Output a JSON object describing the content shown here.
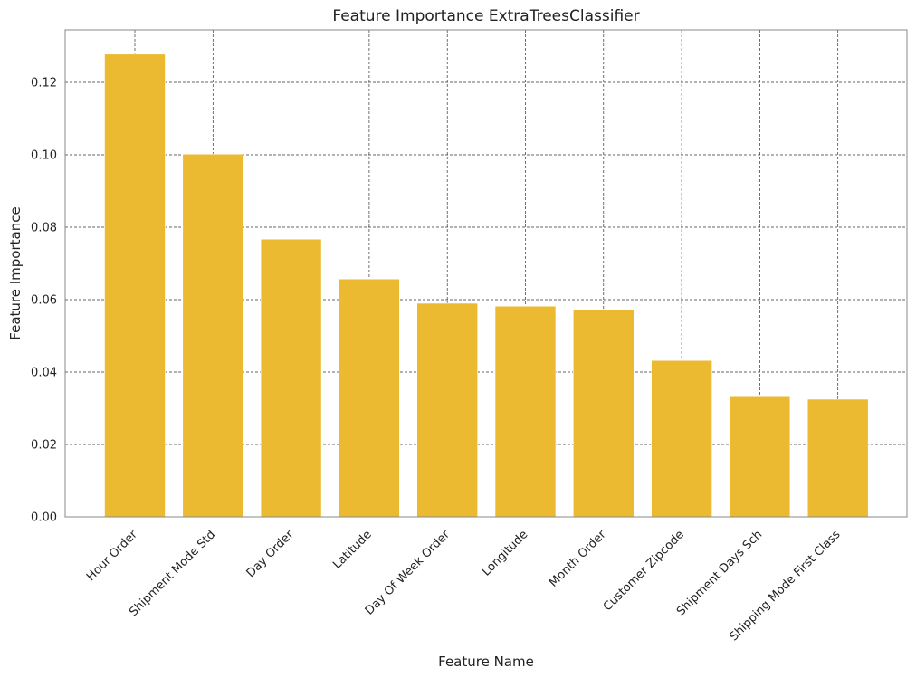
{
  "chart_data": {
    "type": "bar",
    "title": "Feature Importance ExtraTreesClassifier",
    "xlabel": "Feature Name",
    "ylabel": "Feature Importance",
    "categories": [
      "Hour Order",
      "Shipment Mode Std",
      "Day Order",
      "Latitude",
      "Day Of Week Order",
      "Longitude",
      "Month Order",
      "Customer Zipcode",
      "Shipment Days Sch",
      "Shipping Mode First Class"
    ],
    "values": [
      0.1278,
      0.1002,
      0.0767,
      0.0657,
      0.059,
      0.0582,
      0.0572,
      0.0432,
      0.0332,
      0.0325
    ],
    "ylim": [
      0,
      0.1345
    ],
    "yticks": [
      0.0,
      0.02,
      0.04,
      0.06,
      0.08,
      0.1,
      0.12
    ],
    "ytick_labels": [
      "0.00",
      "0.02",
      "0.04",
      "0.06",
      "0.08",
      "0.10",
      "0.12"
    ],
    "grid": true,
    "bar_color": "#ecba30"
  }
}
